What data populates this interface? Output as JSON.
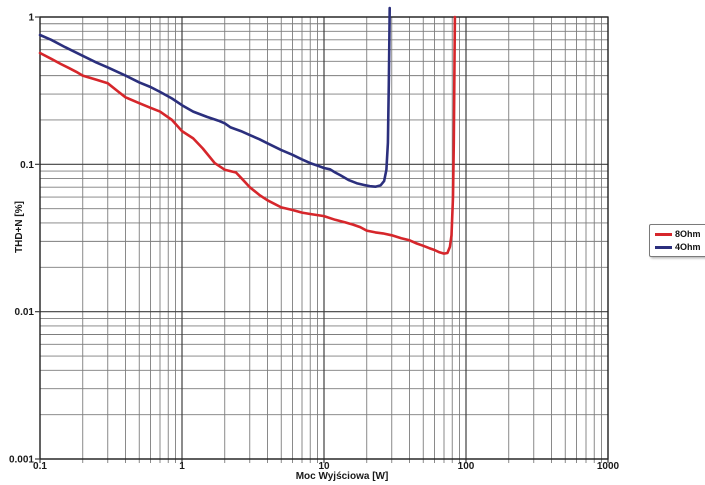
{
  "chart_data": {
    "type": "line",
    "title": "",
    "xlabel": "Moc Wyjściowa [W]",
    "ylabel": "THD+N [%]",
    "x_scale": "log",
    "y_scale": "log",
    "xlim": [
      0.1,
      1000
    ],
    "ylim": [
      0.001,
      1
    ],
    "grid": "log major + minor, both axes",
    "legend_position": "outside-right",
    "x_ticks": [
      {
        "v": 0.1,
        "label": "0.1"
      },
      {
        "v": 1,
        "label": "1"
      },
      {
        "v": 10,
        "label": "10"
      },
      {
        "v": 100,
        "label": "100"
      },
      {
        "v": 1000,
        "label": "1000"
      }
    ],
    "y_ticks": [
      {
        "v": 1,
        "label": "1"
      },
      {
        "v": 0.1,
        "label": "0.1"
      },
      {
        "v": 0.01,
        "label": "0.01"
      },
      {
        "v": 0.001,
        "label": "0.001"
      }
    ],
    "colors": {
      "grid_major": "#3f3f3f",
      "grid_minor": "#7d7d7d",
      "plot_border": "#222222",
      "text": "#1a1a1a"
    },
    "series": [
      {
        "name": "8Ohm",
        "color": "#d6262b",
        "points": [
          [
            0.1,
            0.57
          ],
          [
            0.12,
            0.52
          ],
          [
            0.14,
            0.48
          ],
          [
            0.16,
            0.45
          ],
          [
            0.18,
            0.425
          ],
          [
            0.2,
            0.4
          ],
          [
            0.25,
            0.375
          ],
          [
            0.3,
            0.355
          ],
          [
            0.35,
            0.315
          ],
          [
            0.4,
            0.285
          ],
          [
            0.5,
            0.26
          ],
          [
            0.6,
            0.242
          ],
          [
            0.7,
            0.228
          ],
          [
            0.85,
            0.2
          ],
          [
            1.0,
            0.168
          ],
          [
            1.2,
            0.15
          ],
          [
            1.4,
            0.128
          ],
          [
            1.7,
            0.102
          ],
          [
            2.0,
            0.092
          ],
          [
            2.4,
            0.088
          ],
          [
            2.7,
            0.078
          ],
          [
            3.0,
            0.07
          ],
          [
            3.5,
            0.062
          ],
          [
            4.0,
            0.057
          ],
          [
            5.0,
            0.051
          ],
          [
            6.0,
            0.049
          ],
          [
            7.0,
            0.047
          ],
          [
            8.0,
            0.046
          ],
          [
            10,
            0.0445
          ],
          [
            12,
            0.042
          ],
          [
            14,
            0.0405
          ],
          [
            16,
            0.039
          ],
          [
            18,
            0.0375
          ],
          [
            20,
            0.0355
          ],
          [
            23,
            0.0345
          ],
          [
            26,
            0.034
          ],
          [
            30,
            0.033
          ],
          [
            35,
            0.0315
          ],
          [
            40,
            0.0305
          ],
          [
            45,
            0.029
          ],
          [
            50,
            0.028
          ],
          [
            55,
            0.027
          ],
          [
            60,
            0.0262
          ],
          [
            65,
            0.0253
          ],
          [
            70,
            0.0248
          ],
          [
            74,
            0.025
          ],
          [
            77,
            0.0275
          ],
          [
            79,
            0.033
          ],
          [
            81,
            0.06
          ],
          [
            82,
            0.14
          ],
          [
            83,
            0.5
          ],
          [
            83.5,
            1.0
          ]
        ]
      },
      {
        "name": "4Ohm",
        "color": "#2b2f7d",
        "points": [
          [
            0.1,
            0.755
          ],
          [
            0.12,
            0.7
          ],
          [
            0.15,
            0.625
          ],
          [
            0.2,
            0.545
          ],
          [
            0.25,
            0.49
          ],
          [
            0.3,
            0.455
          ],
          [
            0.35,
            0.425
          ],
          [
            0.4,
            0.4
          ],
          [
            0.5,
            0.36
          ],
          [
            0.6,
            0.335
          ],
          [
            0.7,
            0.31
          ],
          [
            0.85,
            0.28
          ],
          [
            1.0,
            0.252
          ],
          [
            1.2,
            0.228
          ],
          [
            1.5,
            0.21
          ],
          [
            1.8,
            0.198
          ],
          [
            2.0,
            0.19
          ],
          [
            2.2,
            0.178
          ],
          [
            2.6,
            0.168
          ],
          [
            3.0,
            0.158
          ],
          [
            3.5,
            0.148
          ],
          [
            4.0,
            0.139
          ],
          [
            5.0,
            0.125
          ],
          [
            6.0,
            0.116
          ],
          [
            7.0,
            0.108
          ],
          [
            8.0,
            0.102
          ],
          [
            9.0,
            0.098
          ],
          [
            10,
            0.0945
          ],
          [
            11,
            0.0925
          ],
          [
            12,
            0.088
          ],
          [
            13,
            0.0845
          ],
          [
            15,
            0.078
          ],
          [
            17,
            0.0745
          ],
          [
            19,
            0.0725
          ],
          [
            21,
            0.071
          ],
          [
            23,
            0.0705
          ],
          [
            25,
            0.072
          ],
          [
            26.5,
            0.077
          ],
          [
            27.5,
            0.092
          ],
          [
            28.2,
            0.14
          ],
          [
            28.6,
            0.35
          ],
          [
            28.9,
            0.75
          ],
          [
            29,
            1.15
          ]
        ]
      }
    ]
  }
}
